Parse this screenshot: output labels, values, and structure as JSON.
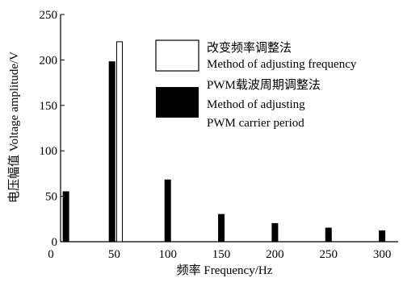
{
  "chart_data": {
    "type": "bar",
    "xlabel": "频率  Frequency/Hz",
    "ylabel": "电压幅值  Voltage amplitude/V",
    "ylim": [
      0,
      250
    ],
    "yticks": [
      "0",
      "50",
      "100",
      "150",
      "200",
      "250"
    ],
    "xticks": [
      {
        "value": 50,
        "label": "50"
      },
      {
        "value": 100,
        "label": "100"
      },
      {
        "value": 150,
        "label": "150"
      },
      {
        "value": 200,
        "label": "200"
      },
      {
        "value": 250,
        "label": "250"
      },
      {
        "value": 300,
        "label": "300"
      }
    ],
    "xlim": [
      0,
      315
    ],
    "legend_position": "top-right",
    "series": [
      {
        "name_cn": "改变频率调整法",
        "name_en": "Method of adjusting frequency",
        "color": "#ffffff",
        "points": [
          {
            "x": 55,
            "y": 220
          }
        ]
      },
      {
        "name_cn": "PWM载波周期调整法",
        "name_en_line1": "Method of adjusting",
        "name_en_line2": "PWM carrier period",
        "color": "#000000",
        "points": [
          {
            "x": 5,
            "y": 55
          },
          {
            "x": 48,
            "y": 198
          },
          {
            "x": 100,
            "y": 68
          },
          {
            "x": 150,
            "y": 30
          },
          {
            "x": 200,
            "y": 20
          },
          {
            "x": 250,
            "y": 15
          },
          {
            "x": 300,
            "y": 12
          }
        ]
      }
    ]
  }
}
